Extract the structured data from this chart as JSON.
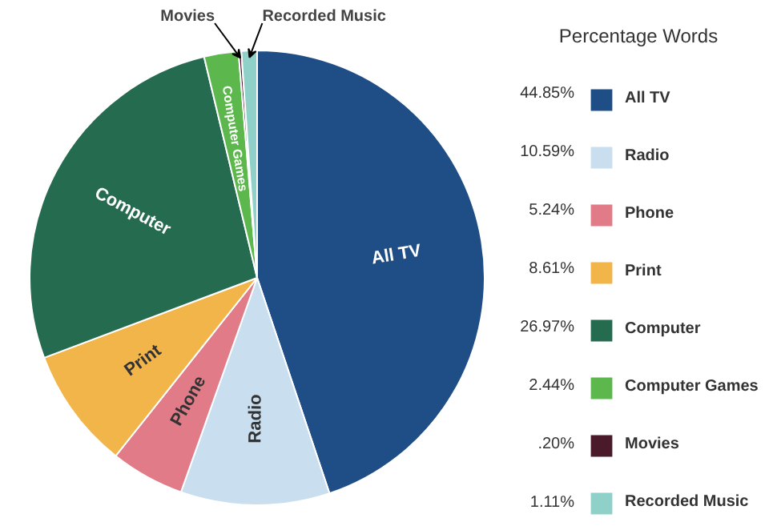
{
  "chart_data": {
    "type": "pie",
    "legend_title": "Percentage Words",
    "legend": "right",
    "categories": [
      "All TV",
      "Radio",
      "Phone",
      "Print",
      "Computer",
      "Computer Games",
      "Movies",
      "Recorded Music"
    ],
    "values": [
      44.85,
      10.59,
      5.24,
      8.61,
      26.97,
      2.44,
      0.2,
      1.11
    ],
    "value_labels": [
      "44.85%",
      "10.59%",
      "5.24%",
      "8.61%",
      "26.97%",
      "2.44%",
      ".20%",
      "1.11%"
    ],
    "colors": [
      "#1f4e86",
      "#c9dff0",
      "#e07b87",
      "#f2b54a",
      "#256b4f",
      "#5cb84c",
      "#4a1a2a",
      "#8fd0c8"
    ]
  }
}
